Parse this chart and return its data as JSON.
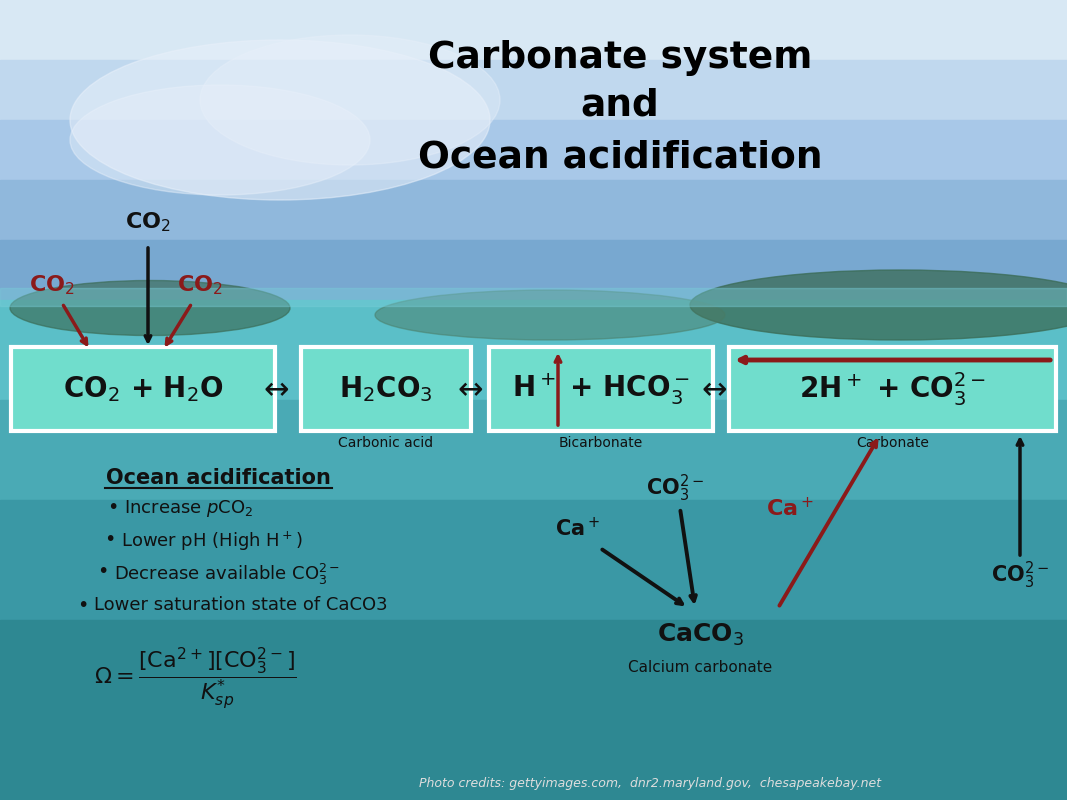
{
  "title_line1": "Carbonate system",
  "title_line2": "and",
  "title_line3": "Ocean acidification",
  "title_color": "#000000",
  "box_bg_color": "#70DDCC",
  "box_border_color": "#FFFFFF",
  "arrow_color_red": "#8B1A1A",
  "arrow_color_black": "#111111",
  "ocean_acid_title": "Ocean acidification",
  "bullet1": "Increase $p$CO$_2$",
  "bullet2": "Lower pH (High H$^+$)",
  "bullet3": "Decrease available CO$_3^{2-}$",
  "bullet4": "Lower saturation state of CaCO3",
  "photo_credits": "Photo credits: gettyimages.com,  dnr2.maryland.gov,  chesapeakebay.net",
  "figsize": [
    10.67,
    8.0
  ],
  "dpi": 100
}
